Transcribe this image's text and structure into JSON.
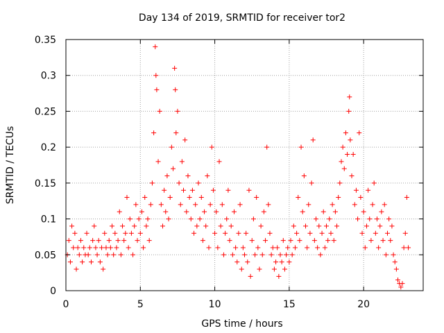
{
  "chart_data": {
    "type": "scatter",
    "title": "Day 134 of 2019, SRMTID for receiver tor2",
    "xlabel": "GPS time / hours",
    "ylabel": "SRMTID / TECUs",
    "xlim": [
      0,
      24
    ],
    "ylim": [
      0,
      0.35
    ],
    "x_ticks": [
      0,
      5,
      10,
      15,
      20
    ],
    "x_tick_labels": [
      "0",
      "5",
      "10",
      "15",
      "20"
    ],
    "y_ticks": [
      0,
      0.05,
      0.1,
      0.15,
      0.2,
      0.25,
      0.3,
      0.35
    ],
    "y_tick_labels": [
      "0",
      "0.05",
      "0.1",
      "0.15",
      "0.2",
      "0.25",
      "0.3",
      "0.35"
    ],
    "grid": true,
    "marker": "+",
    "color": "#ff0000",
    "series": [
      {
        "name": "SRMTID",
        "points": [
          [
            0.1,
            0.05
          ],
          [
            0.2,
            0.07
          ],
          [
            0.3,
            0.04
          ],
          [
            0.4,
            0.09
          ],
          [
            0.5,
            0.06
          ],
          [
            0.6,
            0.08
          ],
          [
            0.7,
            0.03
          ],
          [
            0.8,
            0.06
          ],
          [
            0.9,
            0.05
          ],
          [
            1.0,
            0.07
          ],
          [
            1.1,
            0.04
          ],
          [
            1.2,
            0.06
          ],
          [
            1.3,
            0.05
          ],
          [
            1.4,
            0.08
          ],
          [
            1.5,
            0.05
          ],
          [
            1.6,
            0.06
          ],
          [
            1.7,
            0.04
          ],
          [
            1.8,
            0.07
          ],
          [
            1.9,
            0.09
          ],
          [
            2.0,
            0.06
          ],
          [
            2.1,
            0.05
          ],
          [
            2.2,
            0.07
          ],
          [
            2.3,
            0.04
          ],
          [
            2.4,
            0.06
          ],
          [
            2.5,
            0.03
          ],
          [
            2.6,
            0.08
          ],
          [
            2.7,
            0.06
          ],
          [
            2.8,
            0.05
          ],
          [
            2.9,
            0.07
          ],
          [
            3.0,
            0.06
          ],
          [
            3.1,
            0.09
          ],
          [
            3.2,
            0.05
          ],
          [
            3.3,
            0.08
          ],
          [
            3.4,
            0.06
          ],
          [
            3.5,
            0.07
          ],
          [
            3.6,
            0.11
          ],
          [
            3.7,
            0.05
          ],
          [
            3.8,
            0.09
          ],
          [
            3.9,
            0.07
          ],
          [
            4.0,
            0.08
          ],
          [
            4.1,
            0.13
          ],
          [
            4.2,
            0.06
          ],
          [
            4.3,
            0.1
          ],
          [
            4.4,
            0.08
          ],
          [
            4.5,
            0.05
          ],
          [
            4.6,
            0.09
          ],
          [
            4.7,
            0.12
          ],
          [
            4.8,
            0.07
          ],
          [
            4.9,
            0.1
          ],
          [
            5.0,
            0.08
          ],
          [
            5.1,
            0.11
          ],
          [
            5.2,
            0.06
          ],
          [
            5.3,
            0.13
          ],
          [
            5.4,
            0.09
          ],
          [
            5.5,
            0.1
          ],
          [
            5.6,
            0.07
          ],
          [
            5.7,
            0.12
          ],
          [
            5.8,
            0.15
          ],
          [
            5.9,
            0.22
          ],
          [
            6.0,
            0.34
          ],
          [
            6.05,
            0.3
          ],
          [
            6.1,
            0.28
          ],
          [
            6.2,
            0.18
          ],
          [
            6.3,
            0.25
          ],
          [
            6.4,
            0.12
          ],
          [
            6.5,
            0.09
          ],
          [
            6.6,
            0.14
          ],
          [
            6.7,
            0.11
          ],
          [
            6.8,
            0.16
          ],
          [
            6.9,
            0.1
          ],
          [
            7.0,
            0.13
          ],
          [
            7.1,
            0.2
          ],
          [
            7.2,
            0.17
          ],
          [
            7.3,
            0.31
          ],
          [
            7.35,
            0.28
          ],
          [
            7.4,
            0.22
          ],
          [
            7.5,
            0.25
          ],
          [
            7.6,
            0.15
          ],
          [
            7.7,
            0.12
          ],
          [
            7.8,
            0.18
          ],
          [
            7.9,
            0.14
          ],
          [
            8.0,
            0.21
          ],
          [
            8.1,
            0.11
          ],
          [
            8.2,
            0.16
          ],
          [
            8.3,
            0.13
          ],
          [
            8.4,
            0.1
          ],
          [
            8.5,
            0.14
          ],
          [
            8.6,
            0.08
          ],
          [
            8.7,
            0.12
          ],
          [
            8.8,
            0.09
          ],
          [
            8.9,
            0.15
          ],
          [
            9.0,
            0.1
          ],
          [
            9.1,
            0.13
          ],
          [
            9.2,
            0.07
          ],
          [
            9.3,
            0.11
          ],
          [
            9.4,
            0.09
          ],
          [
            9.5,
            0.16
          ],
          [
            9.6,
            0.06
          ],
          [
            9.7,
            0.12
          ],
          [
            9.8,
            0.2
          ],
          [
            9.9,
            0.14
          ],
          [
            10.0,
            0.08
          ],
          [
            10.1,
            0.11
          ],
          [
            10.2,
            0.06
          ],
          [
            10.3,
            0.18
          ],
          [
            10.4,
            0.09
          ],
          [
            10.5,
            0.12
          ],
          [
            10.6,
            0.05
          ],
          [
            10.7,
            0.08
          ],
          [
            10.8,
            0.1
          ],
          [
            10.9,
            0.14
          ],
          [
            11.0,
            0.07
          ],
          [
            11.1,
            0.09
          ],
          [
            11.2,
            0.05
          ],
          [
            11.3,
            0.11
          ],
          [
            11.4,
            0.06
          ],
          [
            11.5,
            0.04
          ],
          [
            11.6,
            0.08
          ],
          [
            11.7,
            0.12
          ],
          [
            11.8,
            0.03
          ],
          [
            11.9,
            0.06
          ],
          [
            12.0,
            0.05
          ],
          [
            12.1,
            0.08
          ],
          [
            12.2,
            0.04
          ],
          [
            12.3,
            0.14
          ],
          [
            12.4,
            0.02
          ],
          [
            12.5,
            0.07
          ],
          [
            12.6,
            0.1
          ],
          [
            12.7,
            0.05
          ],
          [
            12.8,
            0.13
          ],
          [
            12.9,
            0.06
          ],
          [
            13.0,
            0.03
          ],
          [
            13.1,
            0.09
          ],
          [
            13.2,
            0.05
          ],
          [
            13.3,
            0.11
          ],
          [
            13.4,
            0.07
          ],
          [
            13.5,
            0.2
          ],
          [
            13.6,
            0.12
          ],
          [
            13.7,
            0.08
          ],
          [
            13.8,
            0.05
          ],
          [
            13.9,
            0.06
          ],
          [
            14.0,
            0.03
          ],
          [
            14.1,
            0.04
          ],
          [
            14.2,
            0.06
          ],
          [
            14.3,
            0.02
          ],
          [
            14.4,
            0.05
          ],
          [
            14.5,
            0.04
          ],
          [
            14.6,
            0.07
          ],
          [
            14.7,
            0.03
          ],
          [
            14.8,
            0.05
          ],
          [
            14.9,
            0.06
          ],
          [
            15.0,
            0.04
          ],
          [
            15.1,
            0.07
          ],
          [
            15.2,
            0.05
          ],
          [
            15.3,
            0.09
          ],
          [
            15.4,
            0.06
          ],
          [
            15.5,
            0.08
          ],
          [
            15.6,
            0.13
          ],
          [
            15.7,
            0.07
          ],
          [
            15.8,
            0.2
          ],
          [
            15.9,
            0.11
          ],
          [
            16.0,
            0.16
          ],
          [
            16.1,
            0.09
          ],
          [
            16.2,
            0.06
          ],
          [
            16.3,
            0.12
          ],
          [
            16.4,
            0.08
          ],
          [
            16.5,
            0.15
          ],
          [
            16.6,
            0.21
          ],
          [
            16.7,
            0.07
          ],
          [
            16.8,
            0.1
          ],
          [
            16.9,
            0.06
          ],
          [
            17.0,
            0.09
          ],
          [
            17.1,
            0.05
          ],
          [
            17.2,
            0.08
          ],
          [
            17.3,
            0.11
          ],
          [
            17.4,
            0.06
          ],
          [
            17.5,
            0.09
          ],
          [
            17.6,
            0.07
          ],
          [
            17.7,
            0.1
          ],
          [
            17.8,
            0.08
          ],
          [
            17.9,
            0.12
          ],
          [
            18.0,
            0.07
          ],
          [
            18.1,
            0.11
          ],
          [
            18.2,
            0.09
          ],
          [
            18.3,
            0.13
          ],
          [
            18.4,
            0.15
          ],
          [
            18.5,
            0.18
          ],
          [
            18.6,
            0.2
          ],
          [
            18.7,
            0.17
          ],
          [
            18.8,
            0.22
          ],
          [
            18.9,
            0.19
          ],
          [
            19.0,
            0.25
          ],
          [
            19.05,
            0.27
          ],
          [
            19.1,
            0.21
          ],
          [
            19.2,
            0.16
          ],
          [
            19.3,
            0.19
          ],
          [
            19.4,
            0.12
          ],
          [
            19.5,
            0.14
          ],
          [
            19.6,
            0.1
          ],
          [
            19.7,
            0.22
          ],
          [
            19.8,
            0.13
          ],
          [
            19.9,
            0.08
          ],
          [
            20.0,
            0.11
          ],
          [
            20.1,
            0.06
          ],
          [
            20.2,
            0.09
          ],
          [
            20.3,
            0.14
          ],
          [
            20.4,
            0.1
          ],
          [
            20.5,
            0.07
          ],
          [
            20.6,
            0.12
          ],
          [
            20.7,
            0.15
          ],
          [
            20.8,
            0.08
          ],
          [
            20.9,
            0.1
          ],
          [
            21.0,
            0.06
          ],
          [
            21.1,
            0.09
          ],
          [
            21.2,
            0.11
          ],
          [
            21.3,
            0.07
          ],
          [
            21.4,
            0.12
          ],
          [
            21.5,
            0.05
          ],
          [
            21.6,
            0.08
          ],
          [
            21.7,
            0.1
          ],
          [
            21.8,
            0.07
          ],
          [
            21.9,
            0.09
          ],
          [
            22.0,
            0.05
          ],
          [
            22.1,
            0.04
          ],
          [
            22.2,
            0.03
          ],
          [
            22.3,
            0.015
          ],
          [
            22.4,
            0.01
          ],
          [
            22.5,
            0.005
          ],
          [
            22.6,
            0.01
          ],
          [
            22.7,
            0.06
          ],
          [
            22.8,
            0.08
          ],
          [
            22.9,
            0.13
          ],
          [
            23.0,
            0.06
          ]
        ]
      }
    ]
  }
}
